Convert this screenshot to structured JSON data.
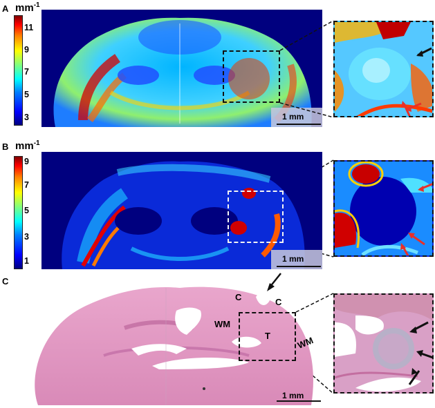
{
  "panels": {
    "a": {
      "letter": "A",
      "unit_label": "mm",
      "unit_exp": "-1",
      "colorbar_ticks": [
        "11",
        "9",
        "7",
        "5",
        "3"
      ],
      "scale_label": "1 mm"
    },
    "b": {
      "letter": "B",
      "unit_label": "mm",
      "unit_exp": "-1",
      "colorbar_ticks": [
        "9",
        "7",
        "5",
        "3",
        "1"
      ],
      "scale_label": "1 mm"
    },
    "c": {
      "letter": "C",
      "region_labels": [
        "C",
        "C",
        "WM",
        "T",
        "WM"
      ],
      "scale_label": "1 mm"
    }
  },
  "colors": {
    "jet_dark_blue": "#00007f",
    "jet_red": "#ff0000",
    "he_pink": "#e7a0c8",
    "arrow_red": "#e8302a"
  }
}
